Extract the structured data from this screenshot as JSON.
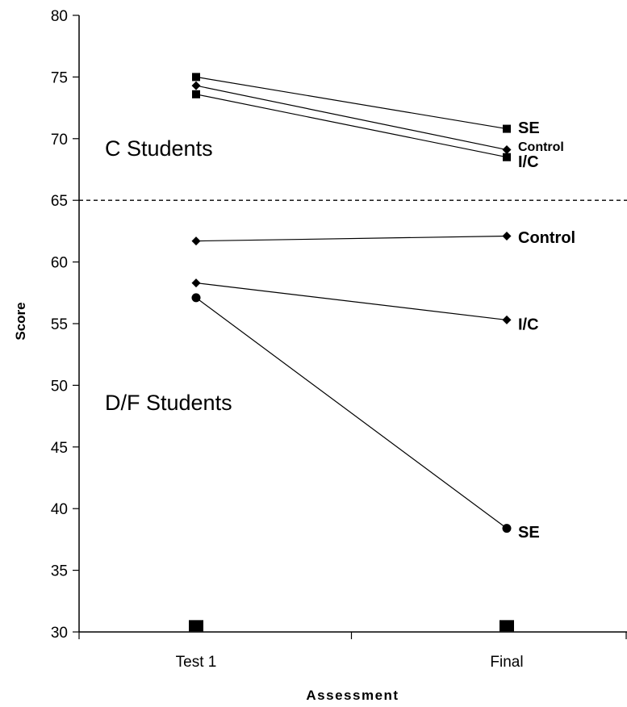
{
  "chart_data": {
    "type": "line",
    "xlabel": "Assessment",
    "ylabel": "Score",
    "ylim": [
      30,
      80
    ],
    "yticks": [
      30,
      35,
      40,
      45,
      50,
      55,
      60,
      65,
      70,
      75,
      80
    ],
    "categories": [
      "Test 1",
      "Final"
    ],
    "threshold_line": {
      "y": 65,
      "style": "dashed"
    },
    "group_labels": [
      {
        "text": "C Students",
        "near_y": 69
      },
      {
        "text": "D/F Students",
        "near_y": 48
      }
    ],
    "baseline_markers": {
      "y": 30.5,
      "marker": "square"
    },
    "series": [
      {
        "name": "SE",
        "group": "C Students",
        "marker": "square",
        "values": [
          75.0,
          70.8
        ]
      },
      {
        "name": "Control",
        "group": "C Students",
        "marker": "diamond",
        "values": [
          74.3,
          69.1
        ]
      },
      {
        "name": "I/C",
        "group": "C Students",
        "marker": "square",
        "values": [
          73.6,
          68.5
        ]
      },
      {
        "name": "Control",
        "group": "D/F Students",
        "marker": "diamond",
        "values": [
          61.7,
          62.1
        ]
      },
      {
        "name": "I/C",
        "group": "D/F Students",
        "marker": "diamond",
        "values": [
          58.3,
          55.3
        ]
      },
      {
        "name": "SE",
        "group": "D/F Students",
        "marker": "circle",
        "values": [
          57.1,
          38.4
        ]
      }
    ]
  }
}
